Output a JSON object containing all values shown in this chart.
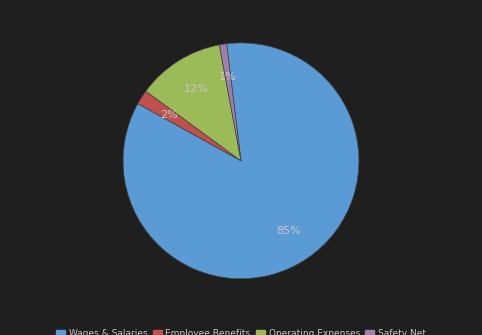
{
  "labels": [
    "Wages & Salaries",
    "Employee Benefits",
    "Operating Expenses",
    "Safety Net"
  ],
  "values": [
    85,
    2,
    12,
    1
  ],
  "colors": [
    "#5b9bd5",
    "#c0504d",
    "#9bbb59",
    "#9e7fac"
  ],
  "background_color": "#1f1f1f",
  "text_color": "#c8c8c8",
  "legend_fontsize": 6.5,
  "startangle": 97
}
